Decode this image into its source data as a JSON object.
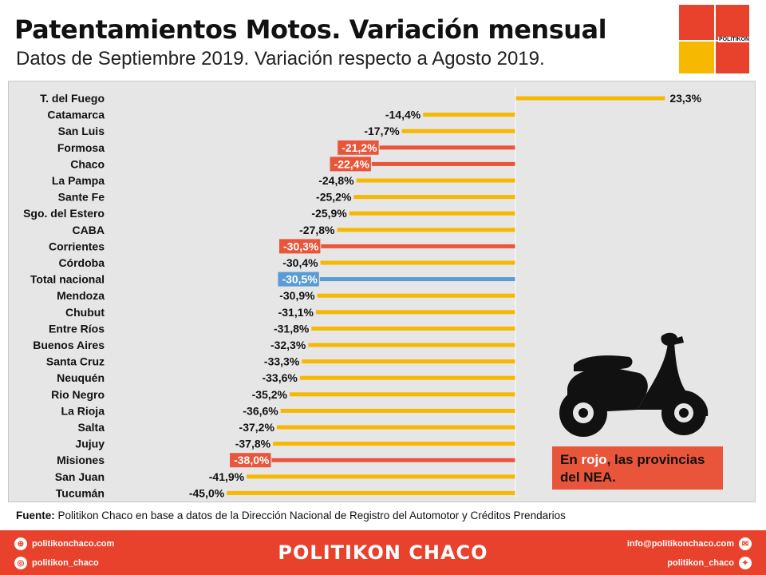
{
  "header": {
    "title": "Patentamientos Motos. Variación mensual",
    "subtitle": "Datos de Septiembre 2019. Variación respecto a Agosto 2019.",
    "logo_text": "POLITIKON"
  },
  "note": {
    "prefix": "En ",
    "highlight": "rojo",
    "suffix": ", las provincias del NEA."
  },
  "source": {
    "label": "Fuente:",
    "text": " Politikon Chaco en base a datos de la Dirección Nacional de Registro del Automotor y Créditos Prendarios"
  },
  "footer": {
    "website": "politikonchaco.com",
    "instagram": "politikon_chaco",
    "brand": "POLITIKON CHACO",
    "email": "info@politikonchaco.com",
    "twitter": "politikon_chaco"
  },
  "colors": {
    "default": "#f6b800",
    "nea": "#e8553a",
    "national": "#5b9bd5"
  },
  "chart_data": {
    "type": "bar",
    "orientation": "horizontal",
    "categories": [
      "T. del Fuego",
      "Catamarca",
      "San Luis",
      "Formosa",
      "Chaco",
      "La Pampa",
      "Sante Fe",
      "Sgo. del Estero",
      "CABA",
      "Corrientes",
      "Córdoba",
      "Total nacional",
      "Mendoza",
      "Chubut",
      "Entre Ríos",
      "Buenos Aires",
      "Santa Cruz",
      "Neuquén",
      "Rio Negro",
      "La Rioja",
      "Salta",
      "Jujuy",
      "Misiones",
      "San Juan",
      "Tucumán"
    ],
    "values": [
      23.3,
      -14.4,
      -17.7,
      -21.2,
      -22.4,
      -24.8,
      -25.2,
      -25.9,
      -27.8,
      -30.3,
      -30.4,
      -30.5,
      -30.9,
      -31.1,
      -31.8,
      -32.3,
      -33.3,
      -33.6,
      -35.2,
      -36.6,
      -37.2,
      -37.8,
      -38.0,
      -41.9,
      -45.0
    ],
    "labels": [
      "23,3%",
      "-14,4%",
      "-17,7%",
      "-21,2%",
      "-22,4%",
      "-24,8%",
      "-25,2%",
      "-25,9%",
      "-27,8%",
      "-30,3%",
      "-30,4%",
      "-30,5%",
      "-30,9%",
      "-31,1%",
      "-31,8%",
      "-32,3%",
      "-33,3%",
      "-33,6%",
      "-35,2%",
      "-36,6%",
      "-37,2%",
      "-37,8%",
      "-38,0%",
      "-41,9%",
      "-45,0%"
    ],
    "groups": [
      "default",
      "default",
      "default",
      "nea",
      "nea",
      "default",
      "default",
      "default",
      "default",
      "nea",
      "default",
      "national",
      "default",
      "default",
      "default",
      "default",
      "default",
      "default",
      "default",
      "default",
      "default",
      "default",
      "nea",
      "default",
      "default"
    ],
    "xlim": [
      -45,
      23.3
    ],
    "grid": false,
    "legend": "none"
  }
}
